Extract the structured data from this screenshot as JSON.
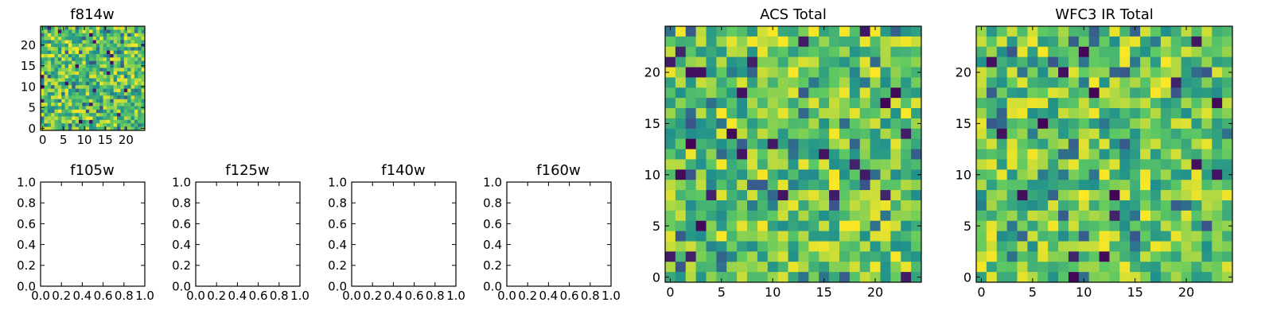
{
  "figure": {
    "background": "#ffffff"
  },
  "colormap": {
    "name": "viridis",
    "stops": [
      "#440154",
      "#3b528b",
      "#21918c",
      "#5ec962",
      "#fde725"
    ]
  },
  "chart_data": [
    {
      "id": "f814w",
      "type": "heatmap",
      "title": "f814w",
      "cols": 30,
      "rows": 30,
      "xlim": [
        -0.5,
        24.5
      ],
      "ylim": [
        -0.5,
        24.5
      ],
      "xticks": [
        0,
        5,
        10,
        15,
        20
      ],
      "yticks": [
        0,
        5,
        10,
        15,
        20
      ],
      "seed": 814,
      "value_range": [
        0,
        1
      ],
      "note_values": "30x30 noise image; cell values approximated (predominantly 0.5-0.95 on viridis scale)"
    },
    {
      "id": "f105w",
      "type": "empty",
      "title": "f105w",
      "xlim": [
        0,
        1
      ],
      "ylim": [
        0,
        1
      ],
      "xticks": [
        "0.0",
        "0.2",
        "0.4",
        "0.6",
        "0.8",
        "1.0"
      ],
      "yticks": [
        "0.0",
        "0.2",
        "0.4",
        "0.6",
        "0.8",
        "1.0"
      ]
    },
    {
      "id": "f125w",
      "type": "empty",
      "title": "f125w",
      "xlim": [
        0,
        1
      ],
      "ylim": [
        0,
        1
      ],
      "xticks": [
        "0.0",
        "0.2",
        "0.4",
        "0.6",
        "0.8",
        "1.0"
      ],
      "yticks": [
        "0.0",
        "0.2",
        "0.4",
        "0.6",
        "0.8",
        "1.0"
      ]
    },
    {
      "id": "f140w",
      "type": "empty",
      "title": "f140w",
      "xlim": [
        0,
        1
      ],
      "ylim": [
        0,
        1
      ],
      "xticks": [
        "0.0",
        "0.2",
        "0.4",
        "0.6",
        "0.8",
        "1.0"
      ],
      "yticks": [
        "0.0",
        "0.2",
        "0.4",
        "0.6",
        "0.8",
        "1.0"
      ]
    },
    {
      "id": "f160w",
      "type": "empty",
      "title": "f160w",
      "xlim": [
        0,
        1
      ],
      "ylim": [
        0,
        1
      ],
      "xticks": [
        "0.0",
        "0.2",
        "0.4",
        "0.6",
        "0.8",
        "1.0"
      ],
      "yticks": [
        "0.0",
        "0.2",
        "0.4",
        "0.6",
        "0.8",
        "1.0"
      ]
    },
    {
      "id": "acs_total",
      "type": "heatmap",
      "title": "ACS Total",
      "cols": 25,
      "rows": 25,
      "xlim": [
        -0.5,
        24.5
      ],
      "ylim": [
        -0.5,
        24.5
      ],
      "xticks": [
        0,
        5,
        10,
        15,
        20
      ],
      "yticks": [
        0,
        5,
        10,
        15,
        20
      ],
      "seed": 1234,
      "value_range": [
        0,
        1
      ],
      "note_values": "25x25 noise image; cell values approximated (mostly 0.5-1.0, sparse dark cells)"
    },
    {
      "id": "wfc3_ir_total",
      "type": "heatmap",
      "title": "WFC3 IR Total",
      "cols": 25,
      "rows": 25,
      "xlim": [
        -0.5,
        24.5
      ],
      "ylim": [
        -0.5,
        24.5
      ],
      "xticks": [
        0,
        5,
        10,
        15,
        20
      ],
      "yticks": [
        0,
        5,
        10,
        15,
        20
      ],
      "seed": 5678,
      "value_range": [
        0,
        1
      ],
      "note_values": "25x25 noise image; cell values approximated (mostly 0.45-0.95, sparse dark cells)"
    }
  ]
}
